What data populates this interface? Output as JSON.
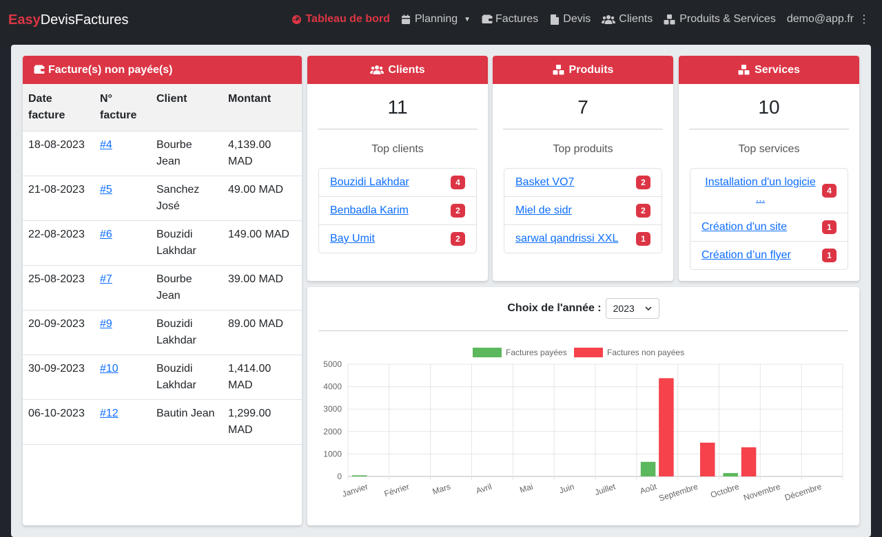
{
  "brand": {
    "part1": "Easy",
    "part2": "DevisFactures"
  },
  "nav": {
    "dashboard": "Tableau de bord",
    "planning": "Planning",
    "invoices": "Factures",
    "quotes": "Devis",
    "clients": "Clients",
    "products": "Produits & Services",
    "user": "demo@app.fr"
  },
  "unpaid": {
    "title": "Facture(s) non payée(s)",
    "headers": [
      "Date facture",
      "N° facture",
      "Client",
      "Montant"
    ],
    "rows": [
      {
        "date": "18-08-2023",
        "num": "#4",
        "client": "Bourbe Jean",
        "amount": "4,139.00 MAD"
      },
      {
        "date": "21-08-2023",
        "num": "#5",
        "client": "Sanchez José",
        "amount": "49.00 MAD"
      },
      {
        "date": "22-08-2023",
        "num": "#6",
        "client": "Bouzidi Lakhdar",
        "amount": "149.00 MAD"
      },
      {
        "date": "25-08-2023",
        "num": "#7",
        "client": "Bourbe Jean",
        "amount": "39.00 MAD"
      },
      {
        "date": "20-09-2023",
        "num": "#9",
        "client": "Bouzidi Lakhdar",
        "amount": "89.00 MAD"
      },
      {
        "date": "30-09-2023",
        "num": "#10",
        "client": "Bouzidi Lakhdar",
        "amount": "1,414.00 MAD"
      },
      {
        "date": "06-10-2023",
        "num": "#12",
        "client": "Bautin Jean",
        "amount": "1,299.00 MAD"
      }
    ]
  },
  "clients": {
    "title": "Clients",
    "count": "11",
    "subtitle": "Top clients",
    "items": [
      {
        "name": "Bouzidi Lakhdar",
        "count": "4"
      },
      {
        "name": "Benbadla Karim",
        "count": "2"
      },
      {
        "name": "Bay Umit",
        "count": "2"
      }
    ]
  },
  "products": {
    "title": "Produits",
    "count": "7",
    "subtitle": "Top produits",
    "items": [
      {
        "name": "Basket VO7",
        "count": "2"
      },
      {
        "name": "Miel de sidr",
        "count": "2"
      },
      {
        "name": "sarwal qandrissi XXL",
        "count": "1"
      }
    ]
  },
  "services": {
    "title": "Services",
    "count": "10",
    "subtitle": "Top services",
    "items": [
      {
        "name": "Installation d'un logicie ...",
        "count": "4"
      },
      {
        "name": "Création d'un site",
        "count": "1"
      },
      {
        "name": "Création d’un flyer",
        "count": "1"
      }
    ]
  },
  "year": {
    "label": "Choix de l'année :",
    "value": "2023"
  },
  "colors": {
    "accent": "#dc3545",
    "paid": "#5cb85c",
    "unpaid": "#f5424b"
  },
  "chart_data": {
    "type": "bar",
    "categories": [
      "Janvier",
      "Février",
      "Mars",
      "Avril",
      "Mai",
      "Juin",
      "Juillet",
      "Août",
      "Septembre",
      "Octobre",
      "Novembre",
      "Décembre"
    ],
    "series": [
      {
        "name": "Factures payées",
        "values": [
          50,
          0,
          0,
          0,
          0,
          0,
          0,
          650,
          0,
          150,
          0,
          0
        ]
      },
      {
        "name": "Factures non payées",
        "values": [
          0,
          0,
          0,
          0,
          0,
          0,
          0,
          4376,
          1503,
          1299,
          0,
          0
        ]
      }
    ],
    "yticks": [
      "0",
      "1000",
      "2000",
      "3000",
      "4000",
      "5000"
    ],
    "ylim": [
      0,
      5000
    ],
    "legend": "top",
    "grid": true
  }
}
